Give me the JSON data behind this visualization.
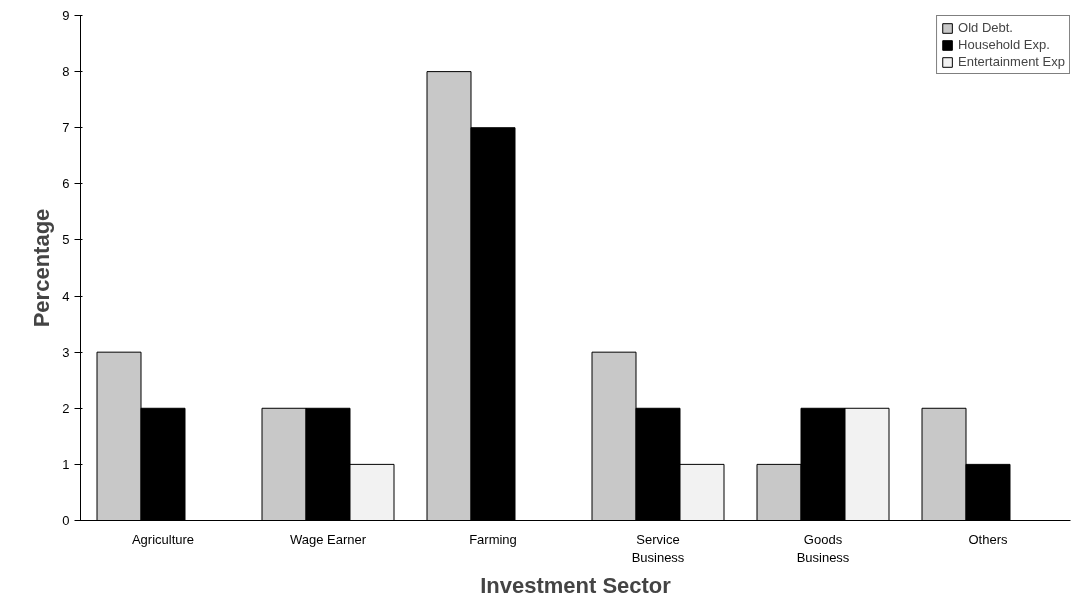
{
  "chart_data": {
    "type": "bar",
    "xlabel": "Investment Sector",
    "ylabel": "Percentage",
    "categories": [
      "Agriculture",
      "Wage Earner",
      "Farming",
      "Service Business",
      "Goods Business",
      "Others"
    ],
    "series": [
      {
        "name": "Old Debt.",
        "color": "#c8c8c8",
        "values": [
          3,
          2,
          8,
          3,
          1,
          2
        ]
      },
      {
        "name": "Household Exp.",
        "color": "#000000",
        "values": [
          2,
          2,
          7,
          2,
          2,
          1
        ]
      },
      {
        "name": "Entertainment Exp",
        "color": "#f2f2f2",
        "values": [
          null,
          1,
          null,
          1,
          2,
          null
        ]
      }
    ],
    "ylim": [
      0,
      9
    ],
    "yticks": [
      0,
      1,
      2,
      3,
      4,
      5,
      6,
      7,
      8,
      9
    ],
    "grid": false,
    "legend": "top right"
  }
}
